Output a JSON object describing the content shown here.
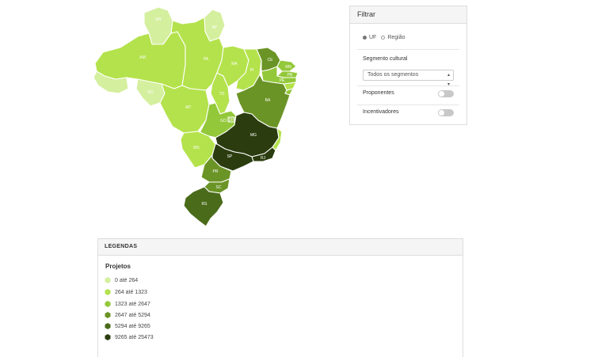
{
  "map": {
    "states": [
      {
        "uf": "RR",
        "label": "RR",
        "class": 0
      },
      {
        "uf": "AP",
        "label": "AP",
        "class": 0
      },
      {
        "uf": "AM",
        "label": "AM",
        "class": 1
      },
      {
        "uf": "PA",
        "label": "PA",
        "class": 1
      },
      {
        "uf": "AC",
        "label": "",
        "class": 0
      },
      {
        "uf": "RO",
        "label": "RO",
        "class": 0
      },
      {
        "uf": "MT",
        "label": "MT",
        "class": 1
      },
      {
        "uf": "TO",
        "label": "TO",
        "class": 1
      },
      {
        "uf": "MA",
        "label": "MA",
        "class": 1
      },
      {
        "uf": "PI",
        "label": "PI",
        "class": 1
      },
      {
        "uf": "CE",
        "label": "CE",
        "class": 3
      },
      {
        "uf": "RN",
        "label": "RN",
        "class": 2
      },
      {
        "uf": "PB",
        "label": "PB",
        "class": 2
      },
      {
        "uf": "PE",
        "label": "PE",
        "class": 2
      },
      {
        "uf": "AL",
        "label": "",
        "class": 1
      },
      {
        "uf": "SE",
        "label": "",
        "class": 2
      },
      {
        "uf": "BA",
        "label": "BA",
        "class": 3
      },
      {
        "uf": "GO",
        "label": "GO",
        "class": 2
      },
      {
        "uf": "DF",
        "label": "DF",
        "class": 2
      },
      {
        "uf": "MS",
        "label": "MS",
        "class": 1
      },
      {
        "uf": "MG",
        "label": "MG",
        "class": 5
      },
      {
        "uf": "ES",
        "label": "",
        "class": 1
      },
      {
        "uf": "RJ",
        "label": "RJ",
        "class": 5
      },
      {
        "uf": "SP",
        "label": "SP",
        "class": 5
      },
      {
        "uf": "PR",
        "label": "PR",
        "class": 3
      },
      {
        "uf": "SC",
        "label": "SC",
        "class": 3
      },
      {
        "uf": "RS",
        "label": "RS",
        "class": 4
      }
    ]
  },
  "filter": {
    "title": "Filtrar",
    "radio_uf": "UF",
    "radio_regiao": "Região",
    "segment_label": "Segmento cultural",
    "segment_value": "Todos os segmentos",
    "toggle_proponentes": "Proponentes",
    "toggle_incentivadores": "Incentivadores"
  },
  "legend": {
    "title": "LEGENDAS",
    "subtitle": "Projetos",
    "colors": [
      "#d4ef9e",
      "#b4e24c",
      "#93c83a",
      "#6b9426",
      "#4a6b1a",
      "#2b3d0f"
    ],
    "items": [
      {
        "label": "0 até 264"
      },
      {
        "label": "264 até 1323"
      },
      {
        "label": "1323 até 2647"
      },
      {
        "label": "2647 até 5294"
      },
      {
        "label": "5294 até 9265"
      },
      {
        "label": "9265 até 25473"
      }
    ]
  }
}
